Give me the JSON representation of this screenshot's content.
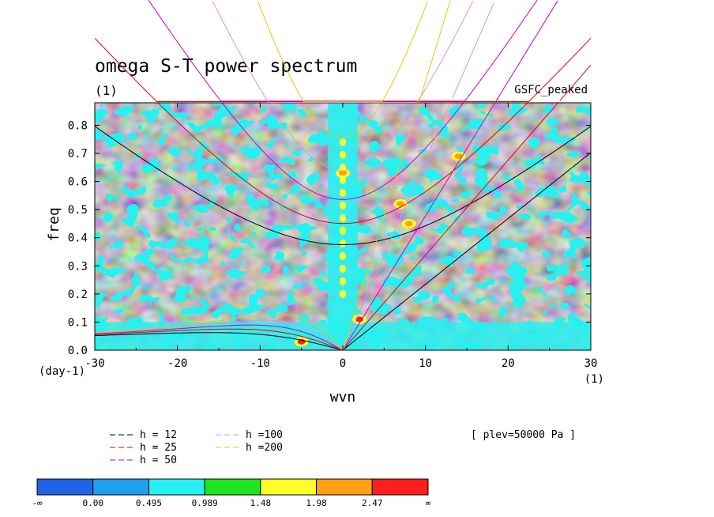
{
  "chart_data": {
    "type": "heatmap",
    "title": "omega S-T power spectrum",
    "subtitle": "(1)",
    "dataset_label": "GSFC_peaked",
    "xlabel": "wvn",
    "ylabel": "freq",
    "x_units": "(1)",
    "y_units": "(day-1)",
    "xlim": [
      -30,
      30
    ],
    "ylim": [
      0,
      0.88
    ],
    "x_ticks": [
      -30,
      -20,
      -10,
      0,
      10,
      20,
      30
    ],
    "y_ticks": [
      0.0,
      0.1,
      0.2,
      0.3,
      0.4,
      0.5,
      0.6,
      0.7,
      0.8
    ],
    "x_tick_labels": [
      "-30",
      "-20",
      "-10",
      "0",
      "10",
      "20",
      "30"
    ],
    "y_tick_labels": [
      "0.0",
      "0.1",
      "0.2",
      "0.3",
      "0.4",
      "0.5",
      "0.6",
      "0.7",
      "0.8"
    ],
    "plev_note": "[ plev=50000 Pa ]",
    "colorbar": {
      "labels": [
        "-∞",
        "0.00",
        "0.495",
        "0.989",
        "1.48",
        "1.98",
        "2.47",
        "∞"
      ],
      "colors": [
        "#1f64e6",
        "#1ea0ee",
        "#28f0f0",
        "#1ee61e",
        "#ffff28",
        "#ffa014",
        "#ff1e1e"
      ]
    },
    "dispersion_legend": [
      {
        "label": "h = 12",
        "color": "#000000"
      },
      {
        "label": "h = 25",
        "color": "#e60000"
      },
      {
        "label": "h = 50",
        "color": "#c800c8"
      },
      {
        "label": "h =100",
        "color": "#e090e0"
      },
      {
        "label": "h =200",
        "color": "#e6c800"
      }
    ],
    "equivalent_depths_m": [
      12,
      25,
      50,
      100,
      200
    ],
    "background_level": "0.495–0.989",
    "notable_peaks": [
      {
        "x": -5,
        "y": 0.03,
        "level": "2.47–∞"
      },
      {
        "x": 2,
        "y": 0.11,
        "level": "2.47–∞"
      },
      {
        "x": 7,
        "y": 0.52,
        "level": "1.98–2.47"
      },
      {
        "x": 8,
        "y": 0.45,
        "level": "1.98–2.47"
      },
      {
        "x": 0,
        "y": 0.63,
        "level": "1.98–2.47"
      },
      {
        "x": 14,
        "y": 0.69,
        "level": "1.98–2.47"
      }
    ]
  }
}
